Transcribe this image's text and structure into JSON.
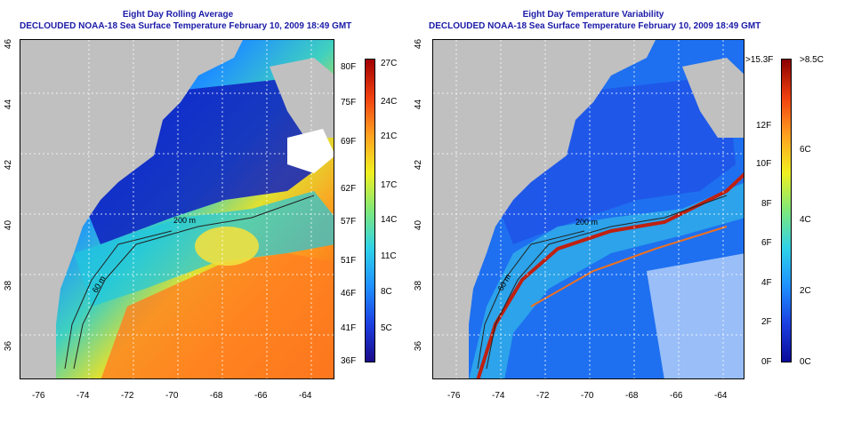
{
  "left_panel": {
    "title_line1": "Eight Day Rolling Average",
    "title_line2": "DECLOUDED NOAA-18 Sea Surface Temperature February 10, 2009 18:49 GMT",
    "colorbar_F": [
      "80F",
      "75F",
      "69F",
      "62F",
      "57F",
      "51F",
      "46F",
      "41F",
      "36F"
    ],
    "colorbar_C": [
      "27C",
      "24C",
      "21C",
      "17C",
      "14C",
      "11C",
      "8C",
      "5C"
    ],
    "colors": [
      "#1a0a8a",
      "#1b3fe0",
      "#1e90ff",
      "#2fd2e8",
      "#7ee87a",
      "#f0f020",
      "#ffa020",
      "#f04010",
      "#a00000"
    ]
  },
  "right_panel": {
    "title_line1": "Eight Day Temperature Variability",
    "title_line2": "DECLOUDED NOAA-18 Sea Surface Temperature February 10, 2009 18:49 GMT",
    "colorbar_F": [
      ">15.3F",
      "12F",
      "10F",
      "8F",
      "6F",
      "4F",
      "2F",
      "0F"
    ],
    "colorbar_C": [
      ">8.5C",
      "6C",
      "4C",
      "2C",
      "0C"
    ],
    "colors": [
      "#0a0a9a",
      "#1b3fe0",
      "#1e90ff",
      "#2fd2e8",
      "#7ee87a",
      "#f0f020",
      "#ffa020",
      "#f04010",
      "#8a0000"
    ]
  },
  "axes": {
    "lat_labels": [
      "46",
      "44",
      "42",
      "40",
      "38",
      "36"
    ],
    "lon_labels": [
      "-76",
      "-74",
      "-72",
      "-70",
      "-68",
      "-66",
      "-64"
    ]
  },
  "contour_labels": {
    "depth_200": "200 m",
    "depth_60": "60 m"
  }
}
